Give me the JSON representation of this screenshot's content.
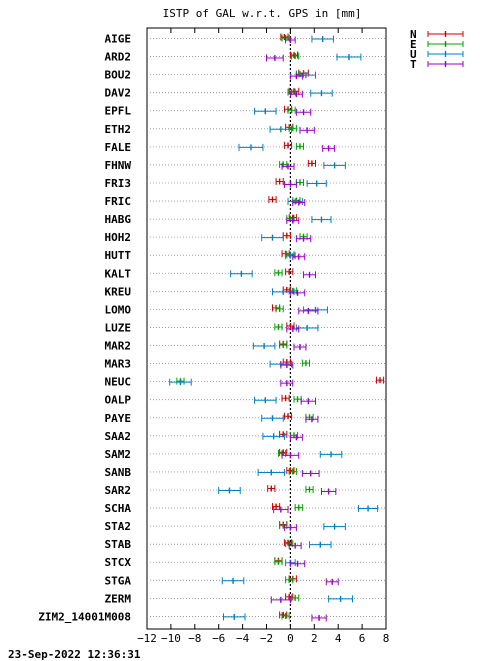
{
  "chart_data": {
    "type": "scatter",
    "title": "ISTP of GAL w.r.t. GPS in [mm]",
    "timestamp": "23-Sep-2022 12:36:31",
    "xlim": [
      -12,
      8
    ],
    "x_ticks": [
      -12,
      -10,
      -8,
      -6,
      -4,
      -2,
      0,
      2,
      4,
      6,
      8
    ],
    "x_tick_labels": [
      "−12",
      "−10",
      "−8",
      "−6",
      "−4",
      "−2",
      "0",
      "2",
      "4",
      "6",
      "8"
    ],
    "grid": "horizontal dotted at each station, vertical dotted at x = 0",
    "legend_position": "top-right, outside plot",
    "series_colors": {
      "N": "#cc0000",
      "E": "#00a000",
      "U": "#0080c0",
      "T": "#9900cc"
    },
    "series_order": [
      "N",
      "E",
      "U",
      "T"
    ],
    "stations": [
      {
        "name": "AIGE",
        "N": [
          -0.5,
          0.3
        ],
        "E": [
          -0.4,
          0.3
        ],
        "U": [
          2.7,
          0.9
        ],
        "T": [
          0.0,
          0.4
        ]
      },
      {
        "name": "ARD2",
        "N": [
          0.3,
          0.3
        ],
        "E": [
          0.4,
          0.3
        ],
        "U": [
          4.9,
          1.0
        ],
        "T": [
          -1.3,
          0.7
        ]
      },
      {
        "name": "BOU2",
        "N": [
          1.1,
          0.4
        ],
        "E": [
          0.8,
          0.3
        ],
        "U": [
          1.3,
          0.8
        ],
        "T": [
          0.5,
          0.5
        ]
      },
      {
        "name": "DAV2",
        "N": [
          0.3,
          0.4
        ],
        "E": [
          0.1,
          0.3
        ],
        "U": [
          2.6,
          0.9
        ],
        "T": [
          0.5,
          0.5
        ]
      },
      {
        "name": "EPFL",
        "N": [
          -0.2,
          0.3
        ],
        "E": [
          0.1,
          0.3
        ],
        "U": [
          -2.1,
          0.9
        ],
        "T": [
          1.1,
          0.6
        ]
      },
      {
        "name": "ETH2",
        "N": [
          -0.1,
          0.3
        ],
        "E": [
          0.2,
          0.3
        ],
        "U": [
          -0.8,
          0.9
        ],
        "T": [
          1.4,
          0.6
        ]
      },
      {
        "name": "FALE",
        "N": [
          -0.2,
          0.3
        ],
        "E": [
          0.8,
          0.3
        ],
        "U": [
          -3.3,
          1.0
        ],
        "T": [
          3.2,
          0.5
        ]
      },
      {
        "name": "FHNW",
        "N": [
          1.8,
          0.3
        ],
        "E": [
          -0.6,
          0.3
        ],
        "U": [
          3.7,
          0.9
        ],
        "T": [
          -0.2,
          0.5
        ]
      },
      {
        "name": "FRI3",
        "N": [
          -0.9,
          0.3
        ],
        "E": [
          0.8,
          0.3
        ],
        "U": [
          2.2,
          0.8
        ],
        "T": [
          0.0,
          0.5
        ]
      },
      {
        "name": "FRIC",
        "N": [
          -1.5,
          0.3
        ],
        "E": [
          0.5,
          0.3
        ],
        "U": [
          0.4,
          0.6
        ],
        "T": [
          0.7,
          0.5
        ]
      },
      {
        "name": "HABG",
        "N": [
          0.2,
          0.3
        ],
        "E": [
          0.0,
          0.3
        ],
        "U": [
          2.6,
          0.8
        ],
        "T": [
          0.2,
          0.5
        ]
      },
      {
        "name": "HOH2",
        "N": [
          -0.3,
          0.3
        ],
        "E": [
          1.1,
          0.3
        ],
        "U": [
          -1.5,
          0.9
        ],
        "T": [
          1.1,
          0.6
        ]
      },
      {
        "name": "HUTT",
        "N": [
          -0.4,
          0.3
        ],
        "E": [
          0.0,
          0.3
        ],
        "U": [
          0.0,
          0.4
        ],
        "T": [
          0.7,
          0.5
        ]
      },
      {
        "name": "KALT",
        "N": [
          -0.1,
          0.3
        ],
        "E": [
          -1.0,
          0.3
        ],
        "U": [
          -4.1,
          0.9
        ],
        "T": [
          1.6,
          0.5
        ]
      },
      {
        "name": "KREU",
        "N": [
          -0.3,
          0.3
        ],
        "E": [
          0.2,
          0.3
        ],
        "U": [
          -0.6,
          0.9
        ],
        "T": [
          0.6,
          0.6
        ]
      },
      {
        "name": "LOMO",
        "N": [
          -1.2,
          0.3
        ],
        "E": [
          -0.9,
          0.3
        ],
        "U": [
          2.1,
          1.0
        ],
        "T": [
          1.5,
          0.8
        ]
      },
      {
        "name": "LUZE",
        "N": [
          0.0,
          0.3
        ],
        "E": [
          -1.0,
          0.3
        ],
        "U": [
          1.4,
          0.9
        ],
        "T": [
          0.2,
          0.5
        ]
      },
      {
        "name": "MAR2",
        "N": [
          -0.6,
          0.3
        ],
        "E": [
          -0.6,
          0.3
        ],
        "U": [
          -2.2,
          0.9
        ],
        "T": [
          0.8,
          0.5
        ]
      },
      {
        "name": "MAR3",
        "N": [
          -0.3,
          0.3
        ],
        "E": [
          1.3,
          0.3
        ],
        "U": [
          -0.8,
          0.9
        ],
        "T": [
          -0.3,
          0.5
        ]
      },
      {
        "name": "NEUC",
        "N": [
          7.5,
          0.3
        ],
        "E": [
          -9.2,
          0.3
        ],
        "U": [
          -9.2,
          0.9
        ],
        "T": [
          -0.3,
          0.5
        ]
      },
      {
        "name": "OALP",
        "N": [
          -0.4,
          0.3
        ],
        "E": [
          0.6,
          0.3
        ],
        "U": [
          -2.1,
          0.9
        ],
        "T": [
          1.5,
          0.6
        ]
      },
      {
        "name": "PAYE",
        "N": [
          -0.2,
          0.3
        ],
        "E": [
          1.6,
          0.3
        ],
        "U": [
          -1.5,
          0.9
        ],
        "T": [
          1.8,
          0.5
        ]
      },
      {
        "name": "SAA2",
        "N": [
          -0.6,
          0.3
        ],
        "E": [
          0.3,
          0.3
        ],
        "U": [
          -1.4,
          0.9
        ],
        "T": [
          0.5,
          0.5
        ]
      },
      {
        "name": "SAM2",
        "N": [
          -0.6,
          0.3
        ],
        "E": [
          -0.7,
          0.3
        ],
        "U": [
          3.4,
          0.9
        ],
        "T": [
          0.0,
          0.7
        ]
      },
      {
        "name": "SANB",
        "N": [
          0.0,
          0.3
        ],
        "E": [
          0.2,
          0.3
        ],
        "U": [
          -1.6,
          1.1
        ],
        "T": [
          1.7,
          0.7
        ]
      },
      {
        "name": "SAR2",
        "N": [
          -1.6,
          0.3
        ],
        "E": [
          1.6,
          0.3
        ],
        "U": [
          -5.1,
          0.9
        ],
        "T": [
          3.2,
          0.6
        ]
      },
      {
        "name": "SCHA",
        "N": [
          -1.2,
          0.3
        ],
        "E": [
          0.7,
          0.3
        ],
        "U": [
          6.5,
          0.8
        ],
        "T": [
          -0.8,
          0.6
        ]
      },
      {
        "name": "STA2",
        "N": [
          -0.6,
          0.3
        ],
        "E": [
          -0.6,
          0.3
        ],
        "U": [
          3.7,
          0.9
        ],
        "T": [
          0.0,
          0.5
        ]
      },
      {
        "name": "STAB",
        "N": [
          -0.2,
          0.3
        ],
        "E": [
          -0.1,
          0.3
        ],
        "U": [
          2.5,
          0.9
        ],
        "T": [
          0.4,
          0.5
        ]
      },
      {
        "name": "STCX",
        "N": [
          -1.0,
          0.3
        ],
        "E": [
          -1.0,
          0.3
        ],
        "U": [
          0.0,
          0.4
        ],
        "T": [
          0.6,
          0.6
        ]
      },
      {
        "name": "STGA",
        "N": [
          0.2,
          0.3
        ],
        "E": [
          -0.1,
          0.3
        ],
        "U": [
          -4.8,
          0.9
        ],
        "T": [
          3.5,
          0.5
        ]
      },
      {
        "name": "ZERM",
        "N": [
          -0.1,
          0.3
        ],
        "E": [
          0.4,
          0.3
        ],
        "U": [
          4.2,
          1.0
        ],
        "T": [
          -0.8,
          0.8
        ]
      },
      {
        "name": "ZIM2_14001M008",
        "N": [
          -0.6,
          0.3
        ],
        "E": [
          -0.4,
          0.3
        ],
        "U": [
          -4.7,
          0.9
        ],
        "T": [
          2.4,
          0.6
        ]
      }
    ]
  }
}
